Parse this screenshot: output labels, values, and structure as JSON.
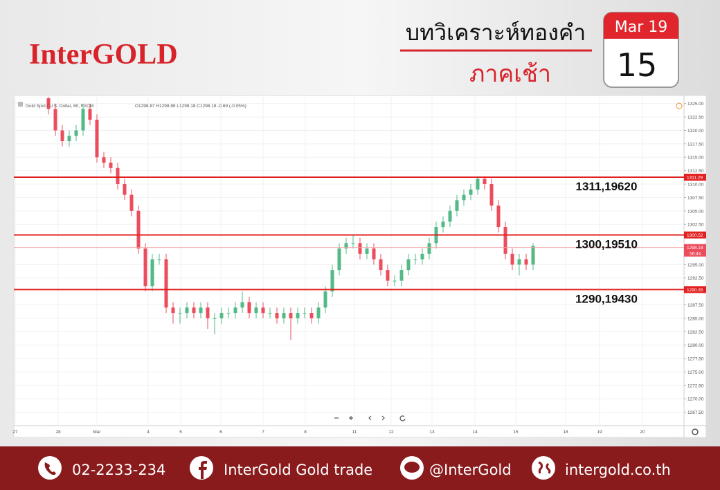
{
  "header": {
    "logo": "InterGOLD",
    "title": "บทวิเคราะห์ทองคำ",
    "subtitle": "ภาคเช้า",
    "date_month": "Mar 19",
    "date_day": "15"
  },
  "chart_data": {
    "type": "candlestick",
    "symbol": "Gold Spot / U.S. Dollar, 60, FXCM",
    "ohlc_text": "O1298.87 H1298.89 L1298.18 C1298.18 -0.69 (-0.05%)",
    "x": [
      5,
      6,
      7,
      8,
      9,
      10,
      11,
      12,
      13,
      14,
      15,
      16,
      17,
      18,
      19,
      20,
      21,
      22,
      23,
      24,
      25,
      26,
      27,
      28,
      29,
      30,
      31,
      32,
      33,
      34,
      35,
      36,
      37,
      38,
      39,
      40,
      41,
      42,
      43,
      44,
      45,
      46,
      47,
      48,
      49,
      50,
      51,
      52,
      53,
      54,
      55,
      56,
      57,
      58,
      59,
      60,
      61,
      62,
      63,
      64,
      65,
      66,
      67,
      68,
      69,
      70,
      71,
      72,
      73,
      74,
      75
    ],
    "open": [
      1326,
      1324,
      1320,
      1318,
      1319,
      1320,
      1324,
      1322,
      1315,
      1314,
      1313,
      1310,
      1308,
      1305,
      1298,
      1291,
      1296,
      1296,
      1287,
      1286,
      1286,
      1287,
      1286,
      1287,
      1285,
      1285,
      1286,
      1286,
      1287,
      1288,
      1286,
      1287,
      1286,
      1286,
      1285,
      1286,
      1285,
      1286,
      1286,
      1285,
      1287,
      1290,
      1294,
      1298,
      1299,
      1299,
      1297,
      1298,
      1296,
      1294,
      1292,
      1292,
      1294,
      1296,
      1296,
      1297,
      1299,
      1302,
      1303,
      1305,
      1307,
      1308,
      1309,
      1311,
      1310,
      1306,
      1302,
      1297,
      1295,
      1296,
      1295
    ],
    "high": [
      1327,
      1325,
      1321,
      1320,
      1321,
      1325,
      1325,
      1323,
      1316,
      1315,
      1314,
      1311,
      1309,
      1306,
      1299,
      1297,
      1297,
      1297,
      1288,
      1287,
      1288,
      1288,
      1288,
      1288,
      1286,
      1287,
      1287,
      1288,
      1290,
      1289,
      1288,
      1288,
      1287,
      1287,
      1287,
      1287,
      1287,
      1287,
      1287,
      1288,
      1291,
      1295,
      1299,
      1300,
      1300.5,
      1300,
      1299,
      1299,
      1297,
      1295,
      1293,
      1295,
      1297,
      1297,
      1298,
      1300,
      1303,
      1304,
      1306,
      1308,
      1309,
      1310,
      1311.5,
      1311.5,
      1311,
      1307,
      1303,
      1298,
      1297,
      1297,
      1299
    ],
    "low": [
      1323,
      1319,
      1317,
      1317,
      1318,
      1319,
      1321,
      1314,
      1313,
      1312,
      1309,
      1307,
      1304,
      1297,
      1290,
      1290,
      1295,
      1286,
      1284,
      1284,
      1285,
      1285,
      1285,
      1283,
      1282,
      1284,
      1285,
      1285,
      1286,
      1285,
      1285,
      1285,
      1285,
      1284,
      1284,
      1281,
      1284,
      1285,
      1284,
      1284,
      1286,
      1289,
      1293,
      1297,
      1298,
      1296,
      1296,
      1295,
      1293,
      1291,
      1291,
      1291,
      1293,
      1295,
      1295,
      1296,
      1298,
      1301,
      1302,
      1304,
      1306,
      1307,
      1308,
      1309,
      1305,
      1301,
      1296,
      1294,
      1293,
      1294,
      1294
    ],
    "close": [
      1324,
      1320,
      1318,
      1319,
      1320,
      1324,
      1322,
      1315,
      1314,
      1313,
      1310,
      1308,
      1305,
      1298,
      1291,
      1296,
      1296,
      1287,
      1286,
      1286,
      1287,
      1286,
      1287,
      1285,
      1285,
      1286,
      1286,
      1287,
      1288,
      1286,
      1287,
      1286,
      1286,
      1285,
      1286,
      1285,
      1286,
      1286,
      1285,
      1287,
      1290,
      1294,
      1298,
      1299,
      1299,
      1297,
      1298,
      1296,
      1294,
      1292,
      1292,
      1294,
      1296,
      1296,
      1297,
      1299,
      1302,
      1303,
      1305,
      1307,
      1308,
      1309,
      1311,
      1310,
      1306,
      1302,
      1297,
      1295,
      1296,
      1295,
      1298.5
    ],
    "xlim": [
      0,
      96.8
    ],
    "xticks": [
      {
        "value": 0.2,
        "label": "27"
      },
      {
        "value": 6.4,
        "label": "28"
      },
      {
        "value": 12,
        "label": "Mar"
      },
      {
        "value": 19.4,
        "label": "4"
      },
      {
        "value": 24.1,
        "label": "5"
      },
      {
        "value": 29.9,
        "label": "6"
      },
      {
        "value": 36,
        "label": "7"
      },
      {
        "value": 42.1,
        "label": "8"
      },
      {
        "value": 49.2,
        "label": "11"
      },
      {
        "value": 54.5,
        "label": "12"
      },
      {
        "value": 60.4,
        "label": "13"
      },
      {
        "value": 66.6,
        "label": "14"
      },
      {
        "value": 72.5,
        "label": "15"
      },
      {
        "value": 79.7,
        "label": "18"
      },
      {
        "value": 84.6,
        "label": "19"
      },
      {
        "value": 90.8,
        "label": "20"
      }
    ],
    "ylim": [
      1265,
      1326.25
    ],
    "yticks": [
      {
        "value": 1267.5,
        "label": "1267.50"
      },
      {
        "value": 1270,
        "label": "1270.00"
      },
      {
        "value": 1272.5,
        "label": "1272.50"
      },
      {
        "value": 1275,
        "label": "1275.00"
      },
      {
        "value": 1277.5,
        "label": "1277.50"
      },
      {
        "value": 1280,
        "label": "1280.00"
      },
      {
        "value": 1282.5,
        "label": "1282.50"
      },
      {
        "value": 1285,
        "label": "1285.00"
      },
      {
        "value": 1287.5,
        "label": "1287.50"
      },
      {
        "value": 1292.5,
        "label": "1292.50"
      },
      {
        "value": 1295,
        "label": "1295.00"
      },
      {
        "value": 1302.5,
        "label": "1302.50"
      },
      {
        "value": 1305,
        "label": "1305.00"
      },
      {
        "value": 1307.5,
        "label": "1307.50"
      },
      {
        "value": 1310,
        "label": "1310.00"
      },
      {
        "value": 1312.5,
        "label": "1312.50"
      },
      {
        "value": 1315,
        "label": "1315.00"
      },
      {
        "value": 1317.5,
        "label": "1317.50"
      },
      {
        "value": 1320,
        "label": "1320.00"
      },
      {
        "value": 1322.5,
        "label": "1322.50"
      },
      {
        "value": 1325,
        "label": "1325.00"
      }
    ],
    "up_color": "#53b987",
    "down_color": "#eb4d5c",
    "level_color": "#e32020",
    "levels": [
      {
        "value": 1311.29,
        "note": "1311,19620"
      },
      {
        "value": 1300.52,
        "note": "1300,19510"
      },
      {
        "value": 1290.35,
        "note": "1290,19430"
      }
    ],
    "last_price": 1298.18,
    "countdown": "56:44"
  },
  "footer": {
    "phone": "02-2233-234",
    "facebook": "InterGold Gold trade",
    "line": "@InterGold",
    "website": "intergold.co.th"
  }
}
